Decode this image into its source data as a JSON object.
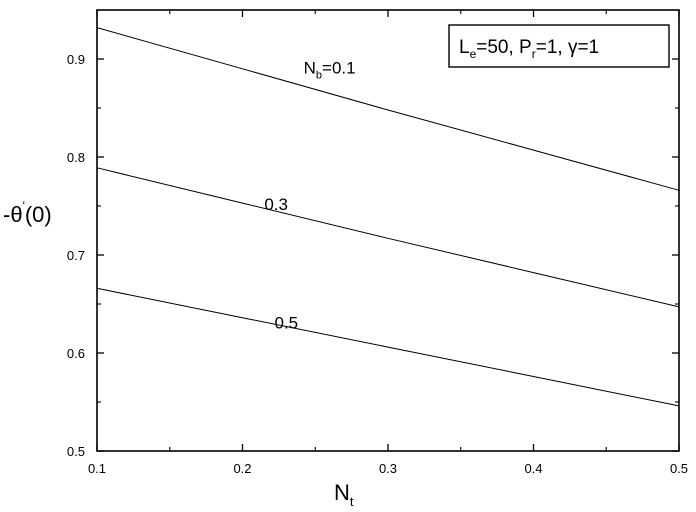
{
  "chart_data": {
    "type": "line",
    "xlabel": "N",
    "xlabel_sub": "t",
    "ylabel_pre": "-θ",
    "ylabel_sup": "'",
    "ylabel_post": "(0)",
    "xlim": [
      0.1,
      0.5
    ],
    "ylim": [
      0.5,
      0.95
    ],
    "xticks": [
      0.1,
      0.2,
      0.3,
      0.4,
      0.5
    ],
    "xtick_labels": [
      "0.1",
      "0.2",
      "0.3",
      "0.4",
      "0.5"
    ],
    "yticks": [
      0.5,
      0.6,
      0.7,
      0.8,
      0.9
    ],
    "ytick_labels": [
      "0.5",
      "0.6",
      "0.7",
      "0.8",
      "0.9"
    ],
    "grid": false,
    "legend_box": {
      "position": "top-right",
      "L": "L",
      "L_sub": "e",
      "L_rest": "=50, P",
      "P_sub": "r",
      "P_rest": "=1, γ=1"
    },
    "series": [
      {
        "label_main": "N",
        "label_sub": "b",
        "label_rest": "=0.1",
        "x": [
          0.1,
          0.2,
          0.3,
          0.4,
          0.5
        ],
        "y": [
          0.932,
          0.89,
          0.848,
          0.807,
          0.766
        ]
      },
      {
        "label_main": "",
        "label_sub": "",
        "label_rest": "0.3",
        "x": [
          0.1,
          0.2,
          0.3,
          0.4,
          0.5
        ],
        "y": [
          0.789,
          0.753,
          0.717,
          0.682,
          0.647
        ]
      },
      {
        "label_main": "",
        "label_sub": "",
        "label_rest": "0.5",
        "x": [
          0.1,
          0.2,
          0.3,
          0.4,
          0.5
        ],
        "y": [
          0.666,
          0.636,
          0.606,
          0.576,
          0.546
        ]
      }
    ]
  }
}
